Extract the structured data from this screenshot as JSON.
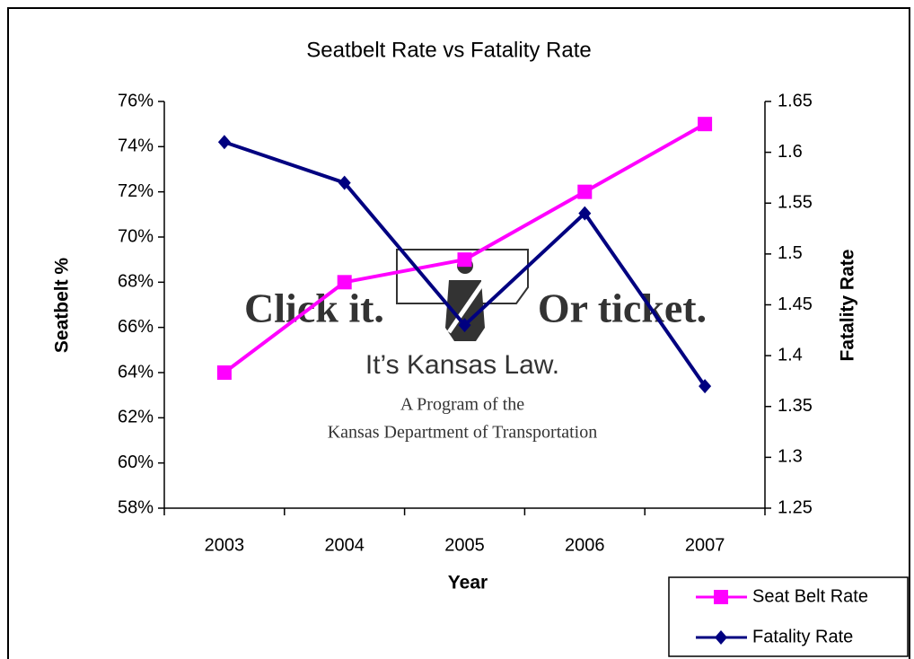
{
  "chart_data": {
    "type": "line",
    "title": "Seatbelt Rate vs Fatality Rate",
    "x_label": "Year",
    "y_label": "Seatbelt %",
    "y2_label": "Fatality Rate",
    "categories": [
      "2003",
      "2004",
      "2005",
      "2006",
      "2007"
    ],
    "series": [
      {
        "name": "Seat Belt Rate",
        "color": "#ff00ff",
        "marker": "square",
        "values": [
          64,
          68,
          69,
          72,
          75
        ]
      },
      {
        "name": "Fatality Rate",
        "color": "#000080",
        "marker": "diamond",
        "axis": "y2",
        "values": [
          1.61,
          1.57,
          1.43,
          1.54,
          1.37
        ]
      }
    ],
    "ylim": [
      58,
      76
    ],
    "yticks": [
      {
        "value": 58,
        "label": "58%"
      },
      {
        "value": 60,
        "label": "60%"
      },
      {
        "value": 62,
        "label": "62%"
      },
      {
        "value": 64,
        "label": "64%"
      },
      {
        "value": 66,
        "label": "66%"
      },
      {
        "value": 68,
        "label": "68%"
      },
      {
        "value": 70,
        "label": "70%"
      },
      {
        "value": 72,
        "label": "72%"
      },
      {
        "value": 74,
        "label": "74%"
      },
      {
        "value": 76,
        "label": "76%"
      }
    ],
    "y2lim": [
      1.25,
      1.65
    ],
    "y2ticks": [
      1.25,
      1.3,
      1.35,
      1.4,
      1.45,
      1.5,
      1.55,
      1.6,
      1.65
    ],
    "grid": false,
    "legend": "bottom-right",
    "watermark": [
      "Click it.",
      "Or ticket.",
      "It’s Kansas Law.",
      "A Program of the",
      "Kansas Department of Transportation"
    ]
  }
}
